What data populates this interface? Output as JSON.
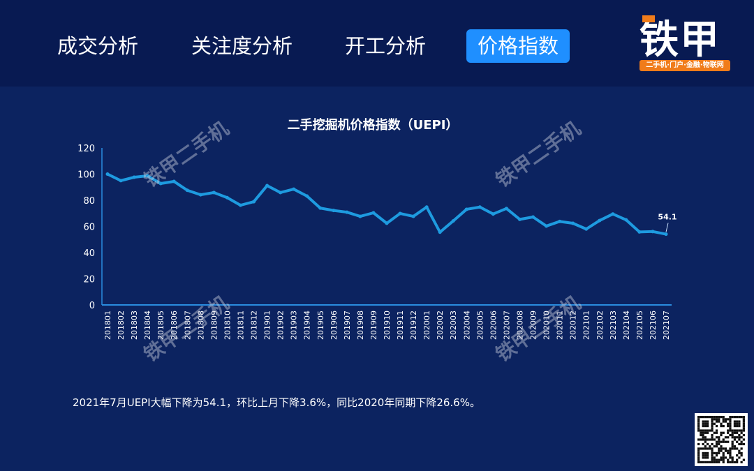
{
  "header": {
    "tabs": [
      {
        "label": "成交分析",
        "active": false
      },
      {
        "label": "关注度分析",
        "active": false
      },
      {
        "label": "开工分析",
        "active": false
      },
      {
        "label": "价格指数",
        "active": true
      }
    ],
    "logo": {
      "text": "铁甲",
      "tagline": "二手机·门户·金融·物联网",
      "accent_color": "#f07c1a"
    }
  },
  "watermark": "铁甲二手机",
  "caption": "2021年7月UEPI大幅下降为54.1，环比上月下降3.6%，同比2020年同期下降26.6%。",
  "colors": {
    "background": "#0c2360",
    "header": "#081a52",
    "active_tab": "#1f8fff",
    "line": "#1e9be0"
  },
  "chart_data": {
    "type": "line",
    "title": "二手挖掘机价格指数（UEPI）",
    "xlabel": "",
    "ylabel": "",
    "ylim": [
      0,
      120
    ],
    "yticks": [
      0,
      20,
      40,
      60,
      80,
      100,
      120
    ],
    "grid": false,
    "categories": [
      "201801",
      "201802",
      "201803",
      "201804",
      "201805",
      "201806",
      "201807",
      "201808",
      "201809",
      "201810",
      "201811",
      "201812",
      "201901",
      "201902",
      "201903",
      "201904",
      "201905",
      "201906",
      "201907",
      "201908",
      "201909",
      "201910",
      "201911",
      "201912",
      "202001",
      "202002",
      "202003",
      "202004",
      "202005",
      "202006",
      "202007",
      "202008",
      "202009",
      "202010",
      "202011",
      "202012",
      "202101",
      "202102",
      "202103",
      "202104",
      "202105",
      "202106",
      "202107"
    ],
    "values": [
      100,
      95,
      97.6,
      98.7,
      92.8,
      94.4,
      87.6,
      84.2,
      85.9,
      82,
      76.2,
      78.9,
      91.2,
      85.9,
      88.5,
      83.2,
      74,
      72.2,
      70.9,
      67.7,
      70.4,
      62.4,
      69.9,
      67.7,
      74.8,
      55.6,
      64.2,
      73.1,
      74.8,
      69.5,
      73.7,
      65.4,
      67.2,
      60.3,
      63.8,
      62.4,
      58,
      64.5,
      69.5,
      65,
      55.8,
      56.1,
      54.1
    ],
    "data_labels": [
      {
        "category": "202107",
        "text": "54.1"
      }
    ]
  }
}
